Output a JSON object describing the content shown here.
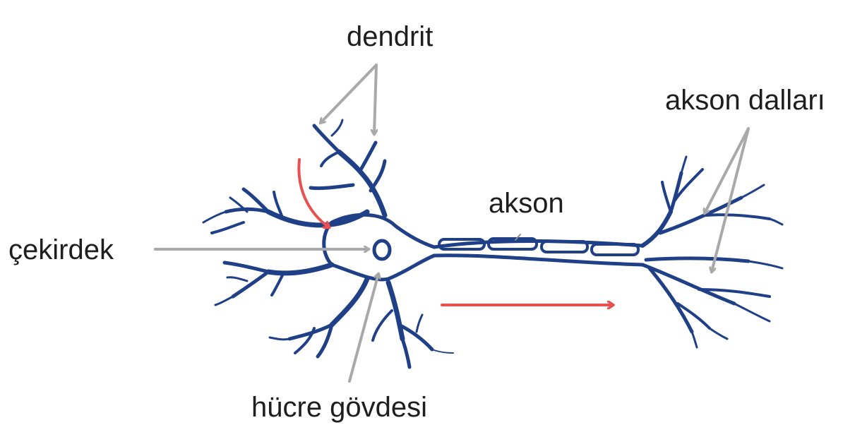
{
  "labels": {
    "dendrite": "dendrit",
    "axon_terminals": "akson dalları",
    "axon": "akson",
    "nucleus": "çekirdek",
    "cell_body": "hücre gövdesi"
  },
  "colors": {
    "neuron": "#1f3f86",
    "pointer_arrow": "#a9a9a9",
    "signal_arrow": "#e8514f",
    "text": "#1e1e1e",
    "background": "#ffffff"
  }
}
